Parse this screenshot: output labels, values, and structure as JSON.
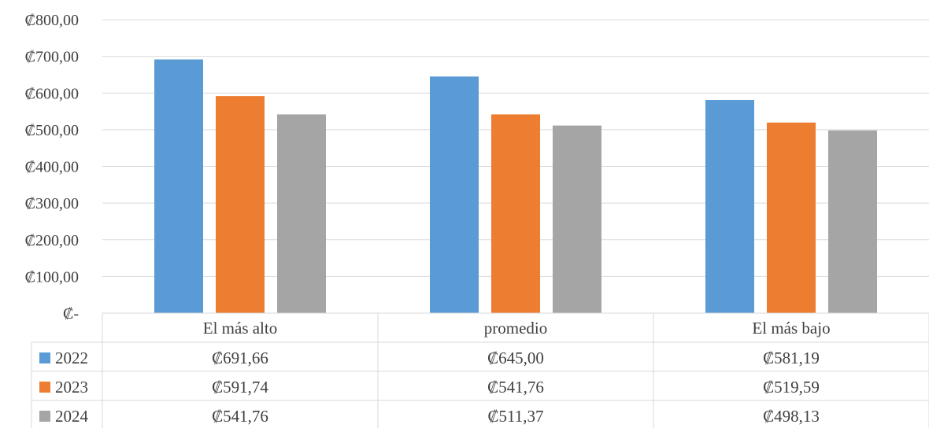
{
  "chart_data": {
    "type": "bar",
    "title": "",
    "xlabel": "",
    "ylabel": "",
    "categories": [
      "El más alto",
      "promedio",
      "El más bajo"
    ],
    "series": [
      {
        "name": "2022",
        "color": "#5b9bd5",
        "values": [
          691.66,
          645.0,
          581.19
        ],
        "labels": [
          "₡691,66",
          "₡645,00",
          "₡581,19"
        ]
      },
      {
        "name": "2023",
        "color": "#ed7d31",
        "values": [
          591.74,
          541.76,
          519.59
        ],
        "labels": [
          "₡591,74",
          "₡541,76",
          "₡519,59"
        ]
      },
      {
        "name": "2024",
        "color": "#a5a5a5",
        "values": [
          541.76,
          511.37,
          498.13
        ],
        "labels": [
          "₡541,76",
          "₡511,37",
          "₡498,13"
        ]
      }
    ],
    "ylim": [
      0,
      800
    ],
    "yticks": [
      0,
      100,
      200,
      300,
      400,
      500,
      600,
      700,
      800
    ],
    "ytick_labels": [
      "₡-",
      "₡100,00",
      "₡200,00",
      "₡300,00",
      "₡400,00",
      "₡500,00",
      "₡600,00",
      "₡700,00",
      "₡800,00"
    ],
    "grid": true,
    "legend_placement": "data-table-left",
    "gridline_color": "#d9d9d9",
    "table_border_color": "#d9d9d9"
  }
}
